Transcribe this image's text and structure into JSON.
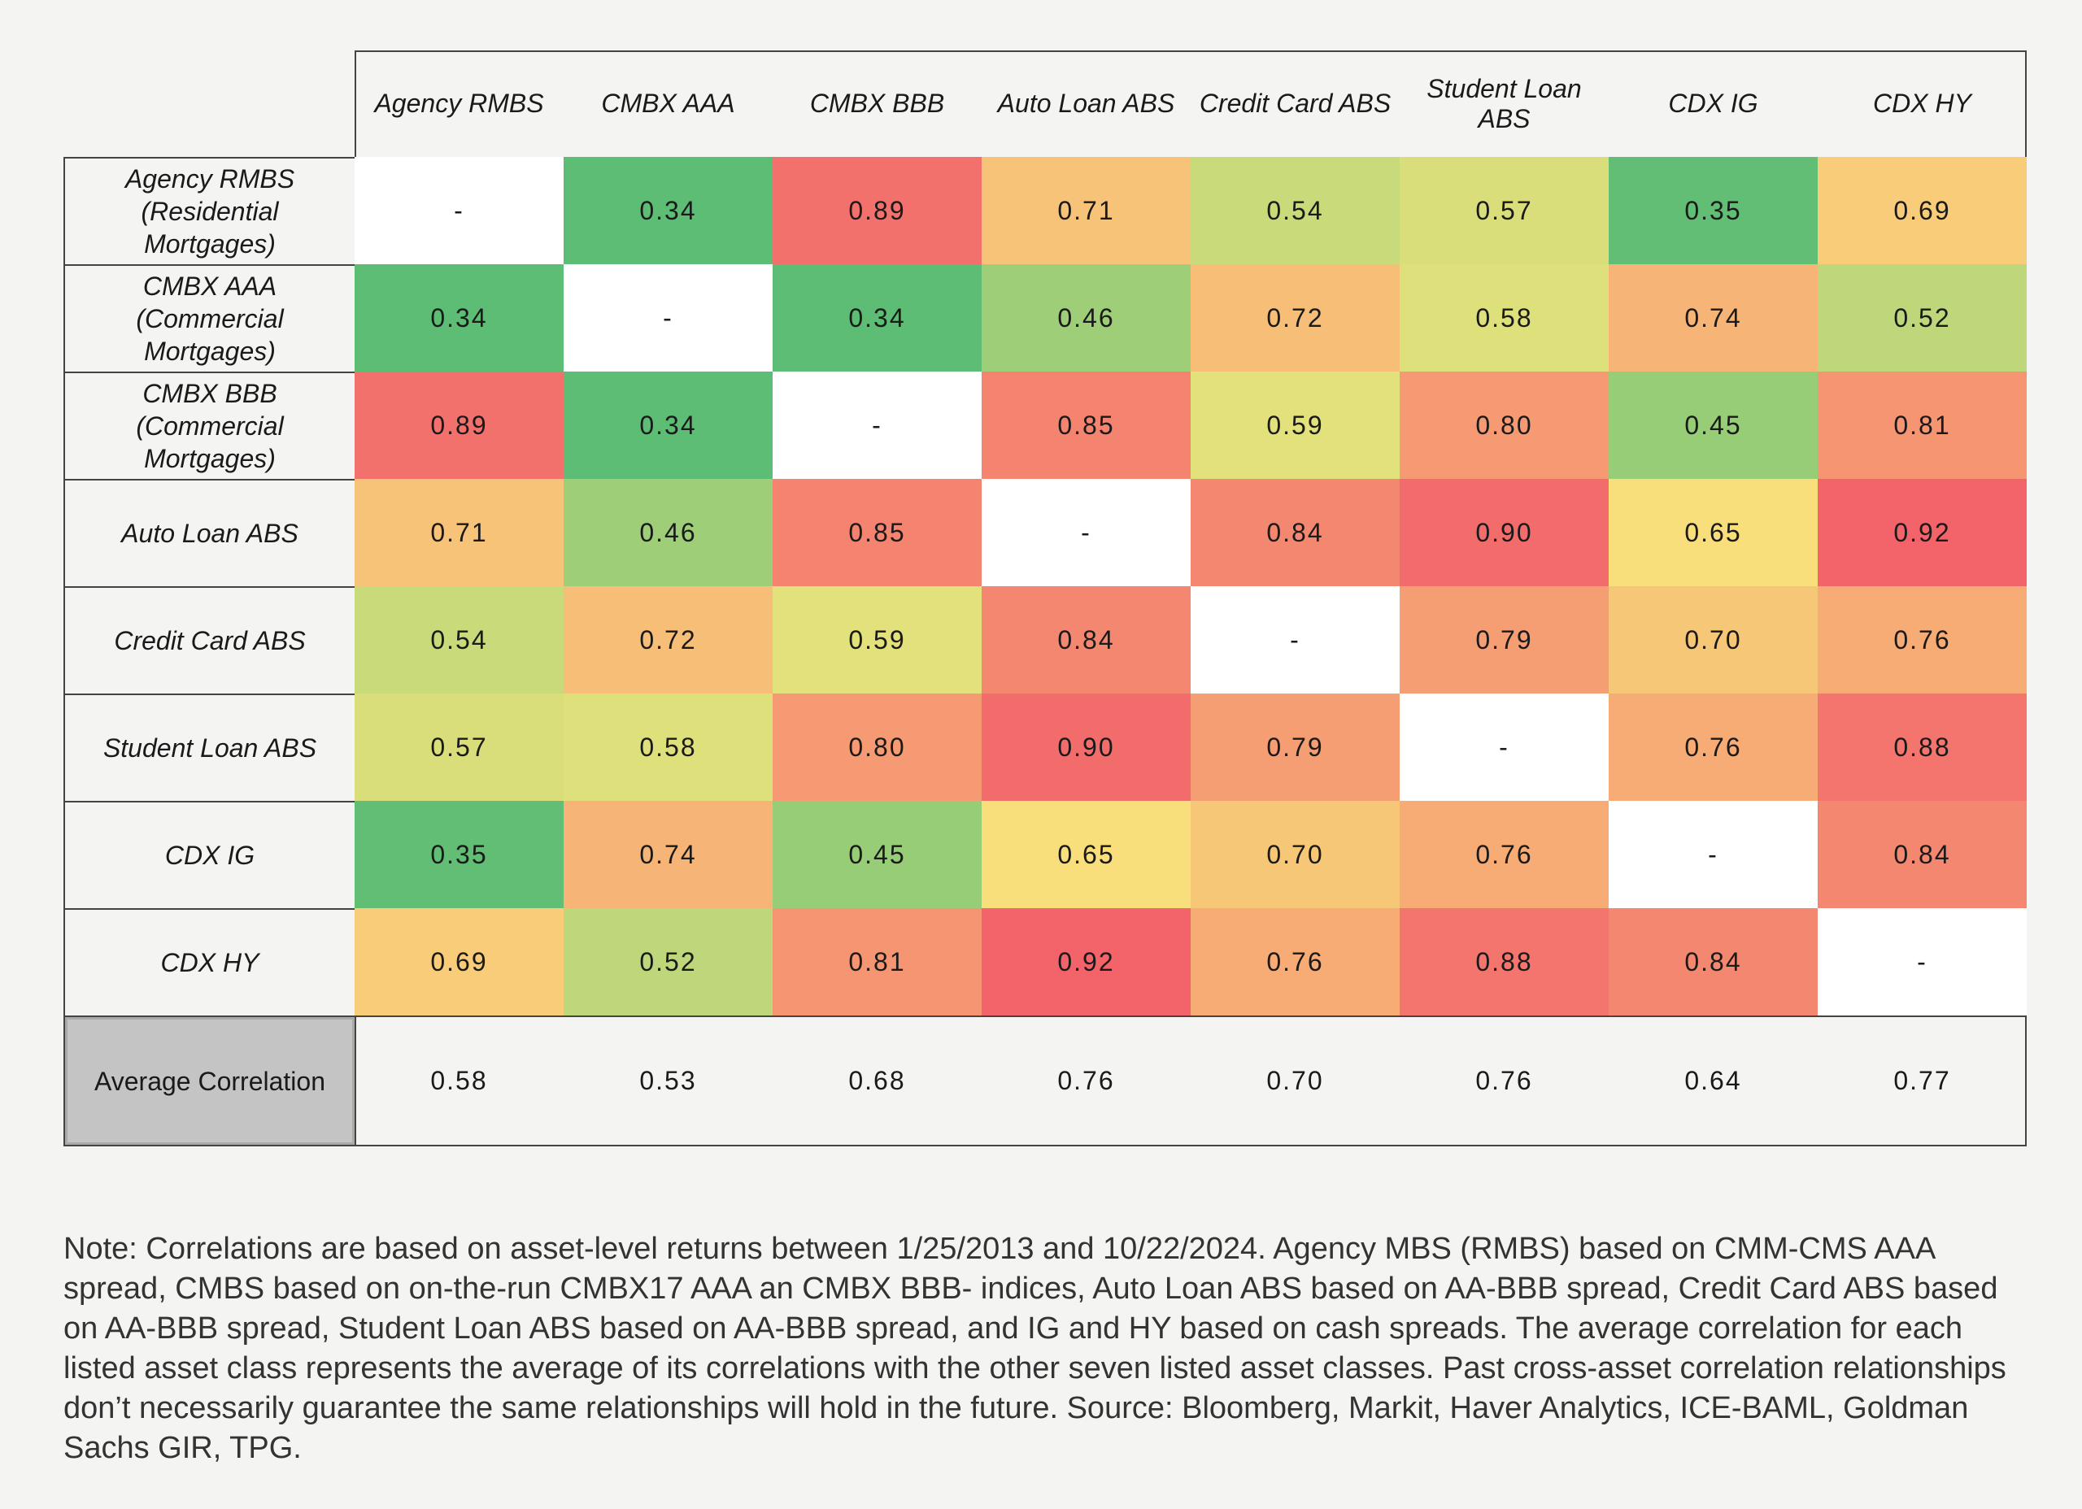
{
  "table": {
    "columns": [
      "Agency RMBS",
      "CMBX AAA",
      "CMBX BBB",
      "Auto Loan ABS",
      "Credit Card ABS",
      "Student Loan ABS",
      "CDX IG",
      "CDX HY"
    ],
    "rows": [
      {
        "label": "Agency RMBS (Residential Mortgages)",
        "cells": [
          "-",
          "0.34",
          "0.89",
          "0.71",
          "0.54",
          "0.57",
          "0.35",
          "0.69"
        ]
      },
      {
        "label": "CMBX AAA (Commercial Mortgages)",
        "cells": [
          "0.34",
          "-",
          "0.34",
          "0.46",
          "0.72",
          "0.58",
          "0.74",
          "0.52"
        ]
      },
      {
        "label": "CMBX BBB (Commercial Mortgages)",
        "cells": [
          "0.89",
          "0.34",
          "-",
          "0.85",
          "0.59",
          "0.80",
          "0.45",
          "0.81"
        ]
      },
      {
        "label": "Auto Loan ABS",
        "cells": [
          "0.71",
          "0.46",
          "0.85",
          "-",
          "0.84",
          "0.90",
          "0.65",
          "0.92"
        ]
      },
      {
        "label": "Credit Card ABS",
        "cells": [
          "0.54",
          "0.72",
          "0.59",
          "0.84",
          "-",
          "0.79",
          "0.70",
          "0.76"
        ]
      },
      {
        "label": "Student Loan ABS",
        "cells": [
          "0.57",
          "0.58",
          "0.80",
          "0.90",
          "0.79",
          "-",
          "0.76",
          "0.88"
        ]
      },
      {
        "label": "CDX IG",
        "cells": [
          "0.35",
          "0.74",
          "0.45",
          "0.65",
          "0.70",
          "0.76",
          "-",
          "0.84"
        ]
      },
      {
        "label": "CDX HY",
        "cells": [
          "0.69",
          "0.52",
          "0.81",
          "0.92",
          "0.76",
          "0.88",
          "0.84",
          "-"
        ]
      }
    ],
    "average": {
      "label": "Average Correlation",
      "values": [
        "0.58",
        "0.53",
        "0.68",
        "0.76",
        "0.70",
        "0.76",
        "0.64",
        "0.77"
      ]
    }
  },
  "color_scale": {
    "low": "#5dbd74",
    "mid": "#f9e77d",
    "high": "#f2636a"
  },
  "note": "Note: Correlations are based on asset-level returns between 1/25/2013 and 10/22/2024. Agency MBS (RMBS) based on CMM-CMS AAA spread, CMBS based on on-the-run CMBX17 AAA an CMBX BBB- indices, Auto Loan ABS based on AA-BBB spread, Credit Card ABS based on AA-BBB spread, Student Loan ABS based on AA-BBB spread, and IG and HY based on cash spreads. The average correlation for each listed asset class represents the average of its correlations with the other seven listed asset classes. Past cross-asset correlation relationships don’t necessarily guarantee the same relationships will hold in the future. Source: Bloomberg, Markit, Haver Analytics, ICE-BAML, Goldman Sachs GIR, TPG."
}
